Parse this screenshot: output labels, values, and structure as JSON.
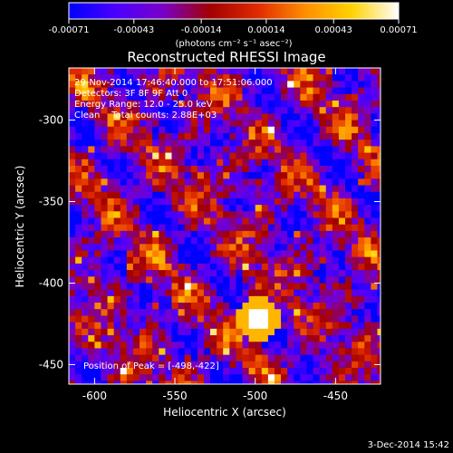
{
  "chart_data": {
    "type": "heatmap",
    "title": "Reconstructed RHESSI Image",
    "colorbar": {
      "ticks": [
        "-0.00071",
        "-0.00043",
        "-0.00014",
        "0.00014",
        "0.00043",
        "0.00071"
      ],
      "units": "(photons cm⁻² s⁻¹ asec⁻²)",
      "range": [
        -0.00071,
        0.00071
      ],
      "colormap": [
        "#0000ff",
        "#4b00ff",
        "#7a00c8",
        "#a30000",
        "#e02a00",
        "#ff8c00",
        "#ffd200",
        "#ffffff"
      ]
    },
    "xlabel": "Heliocentric X (arcsec)",
    "ylabel": "Heliocentric Y (arcsec)",
    "xlim": [
      -616,
      -422
    ],
    "ylim": [
      -462,
      -268
    ],
    "xticks": [
      "-600",
      "-550",
      "-500",
      "-450"
    ],
    "yticks": [
      "-300",
      "-350",
      "-400",
      "-450"
    ],
    "annotations": [
      "29-Nov-2014 17:46:40.000 to 17:51:06.000",
      "Detectors: 3F 8F 9F Att 0",
      "Energy Range: 12.0 - 25.0 keV",
      "Clean    Total counts: 2.88E+03"
    ],
    "peak_label": "Position of Peak = [-498,-422]",
    "peak": [
      -498,
      -422
    ],
    "footer_date": "3-Dec-2014 15:42"
  }
}
